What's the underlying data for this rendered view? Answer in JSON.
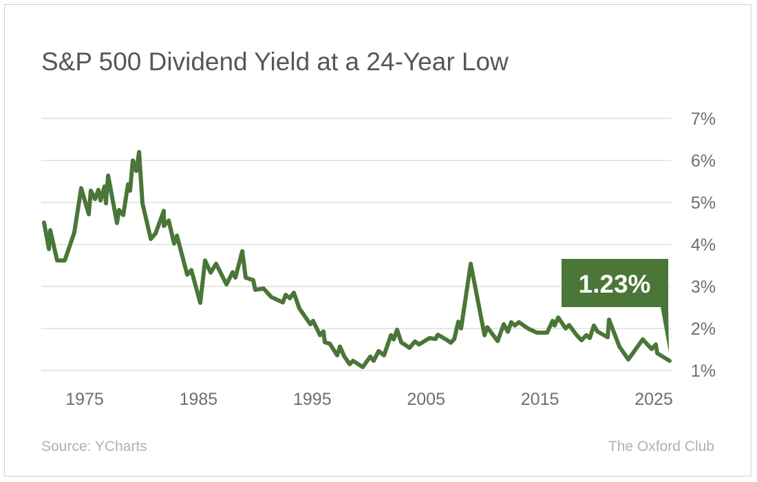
{
  "chart_data": {
    "type": "line",
    "title": "S&P 500 Dividend Yield at a 24-Year Low",
    "xlabel": "",
    "ylabel": "",
    "xlim": [
      1971,
      2027
    ],
    "ylim": [
      1,
      7
    ],
    "x_ticks": [
      "1975",
      "1985",
      "1995",
      "2005",
      "2015",
      "2025"
    ],
    "x_tick_values": [
      1975,
      1985,
      1995,
      2005,
      2015,
      2025
    ],
    "y_ticks": [
      "1%",
      "2%",
      "3%",
      "4%",
      "5%",
      "6%",
      "7%"
    ],
    "y_tick_values": [
      1,
      2,
      3,
      4,
      5,
      6,
      7
    ],
    "grid": "horizontal",
    "y_axis_side": "right",
    "line_color": "#4a7637",
    "callout": {
      "label": "1.23%",
      "value": 1.23,
      "color": "#4a7637"
    },
    "series": [
      {
        "x": [
          1971.43,
          1971.86,
          1971.98,
          1972.58,
          1973.25,
          1974.09,
          1974.7,
          1975.36,
          1975.54,
          1975.91,
          1976.21,
          1976.39,
          1976.75,
          1976.87,
          1977.06,
          1977.84,
          1978.02,
          1978.39,
          1978.81,
          1978.99,
          1979.23,
          1979.54,
          1979.78,
          1980.08,
          1980.81,
          1981.23,
          1981.95,
          1981.96,
          1982.38,
          1982.86,
          1983.11,
          1984.01,
          1984.37,
          1985.16,
          1985.58,
          1986.07,
          1986.55,
          1987.46,
          1988.0,
          1988.24,
          1988.85,
          1989.15,
          1989.81,
          1989.99,
          1990.72,
          1991.39,
          1992.41,
          1992.66,
          1993.02,
          1993.38,
          1993.86,
          1994.83,
          1995.07,
          1995.68,
          1995.98,
          1996.1,
          1996.53,
          1997.19,
          1997.43,
          1997.8,
          1998.28,
          1998.58,
          1999.43,
          2000.09,
          2000.39,
          2000.82,
          2001.3,
          2001.91,
          2002.15,
          2002.45,
          2002.81,
          2003.54,
          2004.02,
          2004.38,
          2005.29,
          2005.83,
          2006.02,
          2006.68,
          2007.17,
          2007.47,
          2007.83,
          2008.07,
          2008.92,
          2010.13,
          2010.37,
          2011.28,
          2011.82,
          2012.18,
          2012.48,
          2012.79,
          2013.15,
          2013.94,
          2014.72,
          2015.63,
          2016.11,
          2016.29,
          2016.6,
          2017.26,
          2017.56,
          2018.23,
          2018.65,
          2019.08,
          2019.38,
          2019.74,
          2020.04,
          2020.95,
          2021.07,
          2021.98,
          2022.76,
          2024.03,
          2024.82,
          2025.18,
          2025.3,
          2026.39
        ],
        "y": [
          4.52,
          3.89,
          4.34,
          3.62,
          3.62,
          4.28,
          5.34,
          4.72,
          5.28,
          5.08,
          5.3,
          5.05,
          5.38,
          4.98,
          5.64,
          4.51,
          4.82,
          4.7,
          5.43,
          5.28,
          6.0,
          5.75,
          6.2,
          4.98,
          4.13,
          4.26,
          4.8,
          4.44,
          4.57,
          4.02,
          4.21,
          3.28,
          3.39,
          2.61,
          3.62,
          3.33,
          3.54,
          3.05,
          3.34,
          3.21,
          3.84,
          3.21,
          3.15,
          2.92,
          2.95,
          2.75,
          2.62,
          2.8,
          2.72,
          2.85,
          2.48,
          2.1,
          2.18,
          1.84,
          1.93,
          1.67,
          1.64,
          1.36,
          1.57,
          1.34,
          1.15,
          1.23,
          1.08,
          1.33,
          1.23,
          1.46,
          1.36,
          1.84,
          1.74,
          1.97,
          1.67,
          1.54,
          1.69,
          1.62,
          1.77,
          1.75,
          1.85,
          1.75,
          1.66,
          1.75,
          2.16,
          2.0,
          3.54,
          1.84,
          2.03,
          1.7,
          2.1,
          1.92,
          2.15,
          2.07,
          2.15,
          2.0,
          1.9,
          1.9,
          2.18,
          2.07,
          2.26,
          2.0,
          2.08,
          1.84,
          1.72,
          1.84,
          1.77,
          2.07,
          1.93,
          1.79,
          2.21,
          1.57,
          1.26,
          1.74,
          1.51,
          1.62,
          1.41,
          1.23
        ]
      }
    ]
  },
  "footer": {
    "source": "Source: YCharts",
    "brand": "The Oxford Club"
  }
}
